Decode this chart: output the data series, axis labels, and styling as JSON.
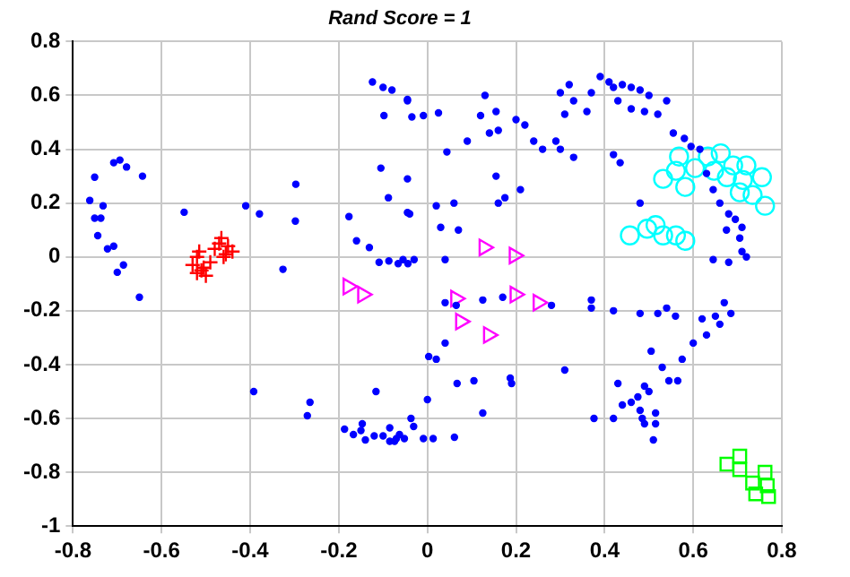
{
  "chart_data": {
    "type": "scatter",
    "title": "Rand Score = 1",
    "xlim": [
      -0.8,
      0.8
    ],
    "ylim": [
      -1,
      0.8
    ],
    "xticks": [
      -0.8,
      -0.6,
      -0.4,
      -0.2,
      0,
      0.2,
      0.4,
      0.6,
      0.8
    ],
    "yticks": [
      -1,
      -0.8,
      -0.6,
      -0.4,
      -0.2,
      0,
      0.2,
      0.4,
      0.6,
      0.8
    ],
    "grid": true,
    "legend": false,
    "series": [
      {
        "color": "#0000ff",
        "marker": "circle",
        "x": [
          -0.751,
          -0.708,
          -0.679,
          -0.694,
          -0.643,
          -0.762,
          -0.732,
          -0.751,
          -0.737,
          -0.744,
          -0.722,
          -0.708,
          -0.686,
          -0.7,
          -0.65,
          -0.549,
          -0.41,
          -0.379,
          -0.297,
          -0.298,
          -0.326,
          -0.177,
          -0.16,
          -0.131,
          -0.109,
          -0.087,
          -0.066,
          -0.044,
          -0.105,
          -0.088,
          -0.04,
          -0.124,
          -0.1,
          -0.08,
          -0.098,
          -0.045,
          -0.035,
          -0.392,
          -0.265,
          -0.271,
          -0.116,
          -0.187,
          -0.167,
          -0.15,
          -0.147,
          -0.14,
          -0.12,
          -0.1,
          -0.085,
          -0.07,
          -0.085,
          -0.063,
          -0.037,
          -0.074,
          -0.052,
          -0.031,
          -0.009,
          0.013,
          0.061,
          0.0,
          0.003,
          0.02,
          0.04,
          0.067,
          0.105,
          0.125,
          0.187,
          0.19,
          0.31,
          0.376,
          0.42,
          0.43,
          0.44,
          0.46,
          0.475,
          0.49,
          0.5,
          0.48,
          0.485,
          0.49,
          0.515,
          0.515,
          0.51,
          0.505,
          0.53,
          0.545,
          0.565,
          0.575,
          0.6,
          0.63,
          0.62,
          0.65,
          0.66,
          0.67,
          0.685,
          0.48,
          0.52,
          0.54,
          0.56,
          0.42,
          0.37,
          0.37,
          0.28,
          0.17,
          0.125,
          0.065,
          0.04,
          -0.045,
          -0.009,
          0.025,
          0.044,
          0.09,
          0.12,
          0.13,
          0.14,
          0.155,
          0.16,
          0.2,
          0.22,
          0.24,
          0.26,
          0.29,
          0.3,
          0.33,
          0.155,
          -0.045,
          0.21,
          0.16,
          0.175,
          0.02,
          0.06,
          -0.045,
          0.03,
          0.07,
          0.04,
          -0.03,
          -0.055,
          0.3,
          0.32,
          0.37,
          0.39,
          0.41,
          0.42,
          0.44,
          0.46,
          0.48,
          0.5,
          0.54,
          0.46,
          0.49,
          0.52,
          0.33,
          0.36,
          0.31,
          0.43,
          0.555,
          0.58,
          0.595,
          0.615,
          0.48,
          0.42,
          0.435,
          0.63,
          0.645,
          0.66,
          0.68,
          0.695,
          0.71,
          0.675,
          0.705,
          0.71,
          0.68,
          0.72,
          0.645
        ],
        "values": [
          0.296,
          0.35,
          0.334,
          0.36,
          0.3,
          0.21,
          0.19,
          0.144,
          0.144,
          0.079,
          0.03,
          0.04,
          -0.03,
          -0.057,
          -0.15,
          0.166,
          0.19,
          0.16,
          0.27,
          0.133,
          -0.046,
          0.15,
          0.06,
          0.035,
          -0.02,
          -0.015,
          -0.025,
          -0.025,
          0.33,
          0.22,
          0.16,
          0.65,
          0.63,
          0.62,
          0.525,
          0.58,
          0.52,
          -0.5,
          -0.54,
          -0.59,
          -0.5,
          -0.64,
          -0.66,
          -0.645,
          -0.62,
          -0.68,
          -0.665,
          -0.665,
          -0.685,
          -0.675,
          -0.635,
          -0.66,
          -0.6,
          -0.685,
          -0.675,
          -0.63,
          -0.675,
          -0.675,
          -0.67,
          -0.53,
          -0.37,
          -0.38,
          -0.32,
          -0.47,
          -0.46,
          -0.58,
          -0.45,
          -0.47,
          -0.42,
          -0.6,
          -0.6,
          -0.47,
          -0.55,
          -0.54,
          -0.52,
          -0.48,
          -0.5,
          -0.57,
          -0.6,
          -0.62,
          -0.58,
          -0.62,
          -0.68,
          -0.35,
          -0.41,
          -0.46,
          -0.46,
          -0.38,
          -0.32,
          -0.29,
          -0.23,
          -0.22,
          -0.25,
          -0.17,
          -0.21,
          -0.21,
          -0.21,
          -0.19,
          -0.22,
          -0.2,
          -0.19,
          -0.16,
          -0.18,
          -0.15,
          -0.16,
          -0.18,
          -0.17,
          0.585,
          0.525,
          0.535,
          0.39,
          0.43,
          0.525,
          0.6,
          0.46,
          0.54,
          0.47,
          0.51,
          0.49,
          0.43,
          0.4,
          0.43,
          0.4,
          0.37,
          0.3,
          0.29,
          0.25,
          0.2,
          0.22,
          0.19,
          0.2,
          0.165,
          0.11,
          0.1,
          -0.01,
          -0.01,
          -0.01,
          0.61,
          0.64,
          0.61,
          0.67,
          0.65,
          0.63,
          0.64,
          0.63,
          0.62,
          0.6,
          0.58,
          0.55,
          0.54,
          0.53,
          0.58,
          0.54,
          0.53,
          0.58,
          0.46,
          0.44,
          0.41,
          0.4,
          0.2,
          0.38,
          0.35,
          0.31,
          0.25,
          0.2,
          0.16,
          0.14,
          0.11,
          0.1,
          0.07,
          0.02,
          -0.02,
          0.0,
          -0.01
        ]
      },
      {
        "color": "#ff0000",
        "marker": "cross",
        "x": [
          -0.53,
          -0.52,
          -0.51,
          -0.5,
          -0.49,
          -0.515,
          -0.505,
          -0.52,
          -0.48,
          -0.47,
          -0.46,
          -0.45,
          -0.44,
          -0.465,
          -0.455
        ],
        "values": [
          -0.03,
          0.0,
          -0.05,
          -0.07,
          -0.02,
          0.02,
          -0.04,
          -0.06,
          0.03,
          0.05,
          0.0,
          0.04,
          0.02,
          0.07,
          0.01
        ]
      },
      {
        "color": "#ff00ff",
        "marker": "triangle",
        "x": [
          -0.179,
          -0.146,
          0.128,
          0.196,
          0.064,
          0.198,
          0.25,
          0.075,
          0.138
        ],
        "values": [
          -0.11,
          -0.14,
          0.035,
          0.005,
          -0.155,
          -0.14,
          -0.17,
          -0.24,
          -0.29
        ]
      },
      {
        "color": "#00ffff",
        "marker": "circle",
        "x": [
          0.457,
          0.496,
          0.515,
          0.532,
          0.561,
          0.582,
          0.568,
          0.532,
          0.561,
          0.582,
          0.604,
          0.633,
          0.662,
          0.69,
          0.72,
          0.676,
          0.712,
          0.755,
          0.705,
          0.734,
          0.762,
          0.647
        ],
        "values": [
          0.08,
          0.105,
          0.118,
          0.08,
          0.08,
          0.06,
          0.373,
          0.29,
          0.32,
          0.26,
          0.33,
          0.373,
          0.385,
          0.34,
          0.34,
          0.296,
          0.286,
          0.296,
          0.24,
          0.23,
          0.19,
          0.32
        ]
      },
      {
        "color": "#00ff00",
        "marker": "square",
        "x": [
          0.705,
          0.676,
          0.705,
          0.762,
          0.734,
          0.767,
          0.741,
          0.77
        ],
        "values": [
          -0.74,
          -0.77,
          -0.79,
          -0.8,
          -0.84,
          -0.85,
          -0.88,
          -0.89
        ]
      }
    ]
  }
}
